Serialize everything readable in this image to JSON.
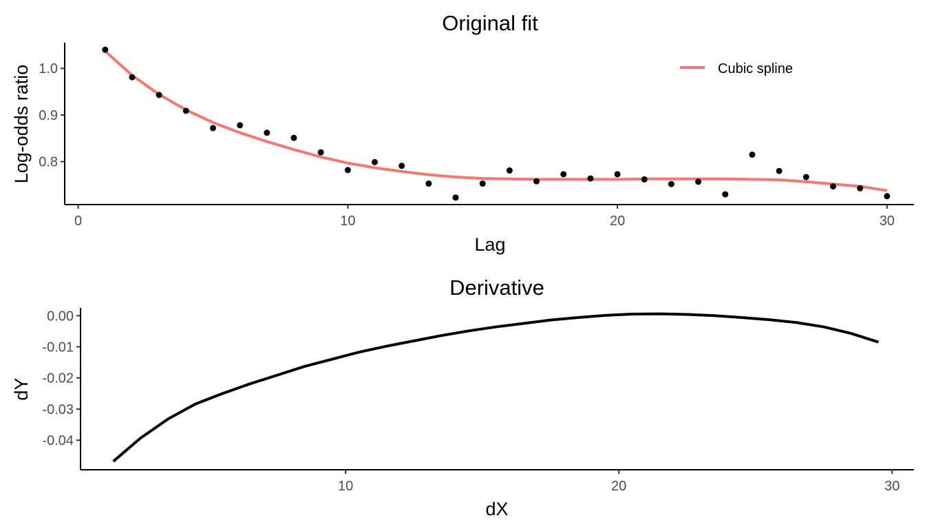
{
  "chart_data": [
    {
      "type": "scatter",
      "title": "Original fit",
      "xlabel": "Lag",
      "ylabel": "Log-odds ratio",
      "xlim": [
        -0.5,
        31.0
      ],
      "ylim": [
        0.708,
        1.055
      ],
      "xticks": [
        0,
        10,
        20,
        30
      ],
      "xtick_labels": [
        "0",
        "10",
        "20",
        "30"
      ],
      "yticks": [
        0.8,
        0.9,
        1.0
      ],
      "ytick_labels": [
        "0.8",
        "0.9",
        "1.0"
      ],
      "grid": false,
      "legend": {
        "position": "top-right",
        "entries": [
          "Cubic spline"
        ]
      },
      "series": [
        {
          "type": "scatter",
          "color": "#000000",
          "x": [
            1,
            2,
            3,
            4,
            5,
            6,
            7,
            8,
            9,
            10,
            11,
            12,
            13,
            14,
            15,
            16,
            17,
            18,
            19,
            20,
            21,
            22,
            23,
            24,
            25,
            26,
            27,
            28,
            29,
            30
          ],
          "y": [
            1.04,
            0.981,
            0.943,
            0.909,
            0.872,
            0.878,
            0.862,
            0.851,
            0.82,
            0.782,
            0.799,
            0.791,
            0.753,
            0.723,
            0.753,
            0.781,
            0.758,
            0.773,
            0.764,
            0.773,
            0.762,
            0.752,
            0.757,
            0.73,
            0.815,
            0.78,
            0.767,
            0.747,
            0.743,
            0.726
          ]
        },
        {
          "name": "Cubic spline",
          "type": "line",
          "color": "#F8766D",
          "x": [
            1,
            2,
            3,
            4,
            5,
            6,
            7,
            8,
            9,
            10,
            11,
            12,
            13,
            14,
            15,
            16,
            17,
            18,
            19,
            20,
            21,
            22,
            23,
            24,
            25,
            26,
            27,
            28,
            29,
            30
          ],
          "y": [
            1.037,
            0.985,
            0.944,
            0.911,
            0.884,
            0.862,
            0.843,
            0.826,
            0.81,
            0.797,
            0.787,
            0.779,
            0.772,
            0.767,
            0.764,
            0.763,
            0.762,
            0.762,
            0.762,
            0.762,
            0.763,
            0.763,
            0.763,
            0.763,
            0.762,
            0.761,
            0.757,
            0.752,
            0.747,
            0.738
          ]
        }
      ]
    },
    {
      "type": "line",
      "title": "Derivative",
      "xlabel": "dX",
      "ylabel": "dY",
      "xlim": [
        0.3,
        30.8
      ],
      "ylim": [
        -0.0495,
        0.0025
      ],
      "xticks": [
        10,
        20,
        30
      ],
      "xtick_labels": [
        "10",
        "20",
        "30"
      ],
      "yticks": [
        -0.04,
        -0.03,
        -0.02,
        -0.01,
        0.0
      ],
      "ytick_labels": [
        "-0.04",
        "-0.03",
        "-0.02",
        "-0.01",
        "0.00"
      ],
      "grid": false,
      "series": [
        {
          "type": "line",
          "color": "#000000",
          "x": [
            1.5,
            2.5,
            3.5,
            4.5,
            5.5,
            6.5,
            7.5,
            8.5,
            9.5,
            10.5,
            11.5,
            12.5,
            13.5,
            14.5,
            15.5,
            16.5,
            17.5,
            18.5,
            19.5,
            20.5,
            21.5,
            22.5,
            23.5,
            24.5,
            25.5,
            26.5,
            27.5,
            28.5,
            29.5
          ],
          "y": [
            -0.0468,
            -0.0393,
            -0.0332,
            -0.0284,
            -0.025,
            -0.0219,
            -0.0191,
            -0.0163,
            -0.014,
            -0.0117,
            -0.0098,
            -0.0081,
            -0.0064,
            -0.0049,
            -0.0036,
            -0.0025,
            -0.0014,
            -0.0006,
            0.0001,
            0.0005,
            0.0006,
            0.0004,
            0.0,
            -0.0006,
            -0.0013,
            -0.0022,
            -0.0036,
            -0.0057,
            -0.0085
          ]
        }
      ]
    }
  ]
}
